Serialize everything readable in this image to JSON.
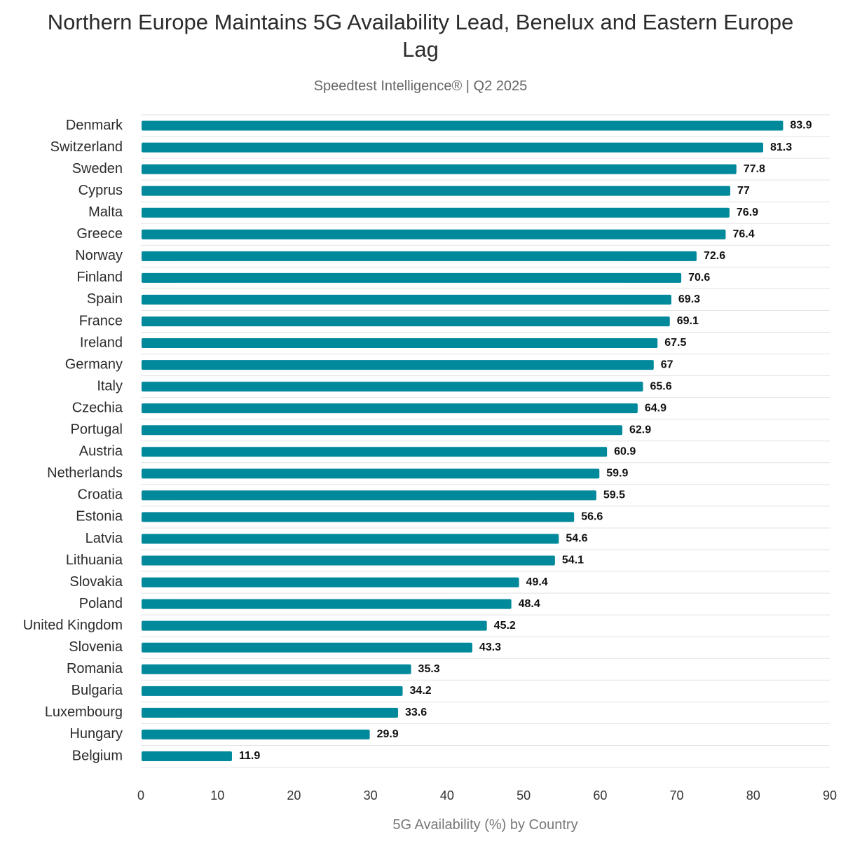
{
  "chart_data": {
    "type": "bar",
    "orientation": "horizontal",
    "title": "Northern Europe Maintains 5G Availability Lead, Benelux and Eastern Europe Lag",
    "subtitle": "Speedtest Intelligence® | Q2 2025",
    "xlabel": "5G Availability (%) by Country",
    "ylabel": "",
    "xlim": [
      0,
      90
    ],
    "xticks": [
      0,
      10,
      20,
      30,
      40,
      50,
      60,
      70,
      80,
      90
    ],
    "grid": "horizontal row separators",
    "bar_color": "#00889b",
    "data_labels": true,
    "categories": [
      "Denmark",
      "Switzerland",
      "Sweden",
      "Cyprus",
      "Malta",
      "Greece",
      "Norway",
      "Finland",
      "Spain",
      "France",
      "Ireland",
      "Germany",
      "Italy",
      "Czechia",
      "Portugal",
      "Austria",
      "Netherlands",
      "Croatia",
      "Estonia",
      "Latvia",
      "Lithuania",
      "Slovakia",
      "Poland",
      "United Kingdom",
      "Slovenia",
      "Romania",
      "Bulgaria",
      "Luxembourg",
      "Hungary",
      "Belgium"
    ],
    "values": [
      83.9,
      81.3,
      77.8,
      77,
      76.9,
      76.4,
      72.6,
      70.6,
      69.3,
      69.1,
      67.5,
      67,
      65.6,
      64.9,
      62.9,
      60.9,
      59.9,
      59.5,
      56.6,
      54.6,
      54.1,
      49.4,
      48.4,
      45.2,
      43.3,
      35.3,
      34.2,
      33.6,
      29.9,
      11.9
    ]
  }
}
